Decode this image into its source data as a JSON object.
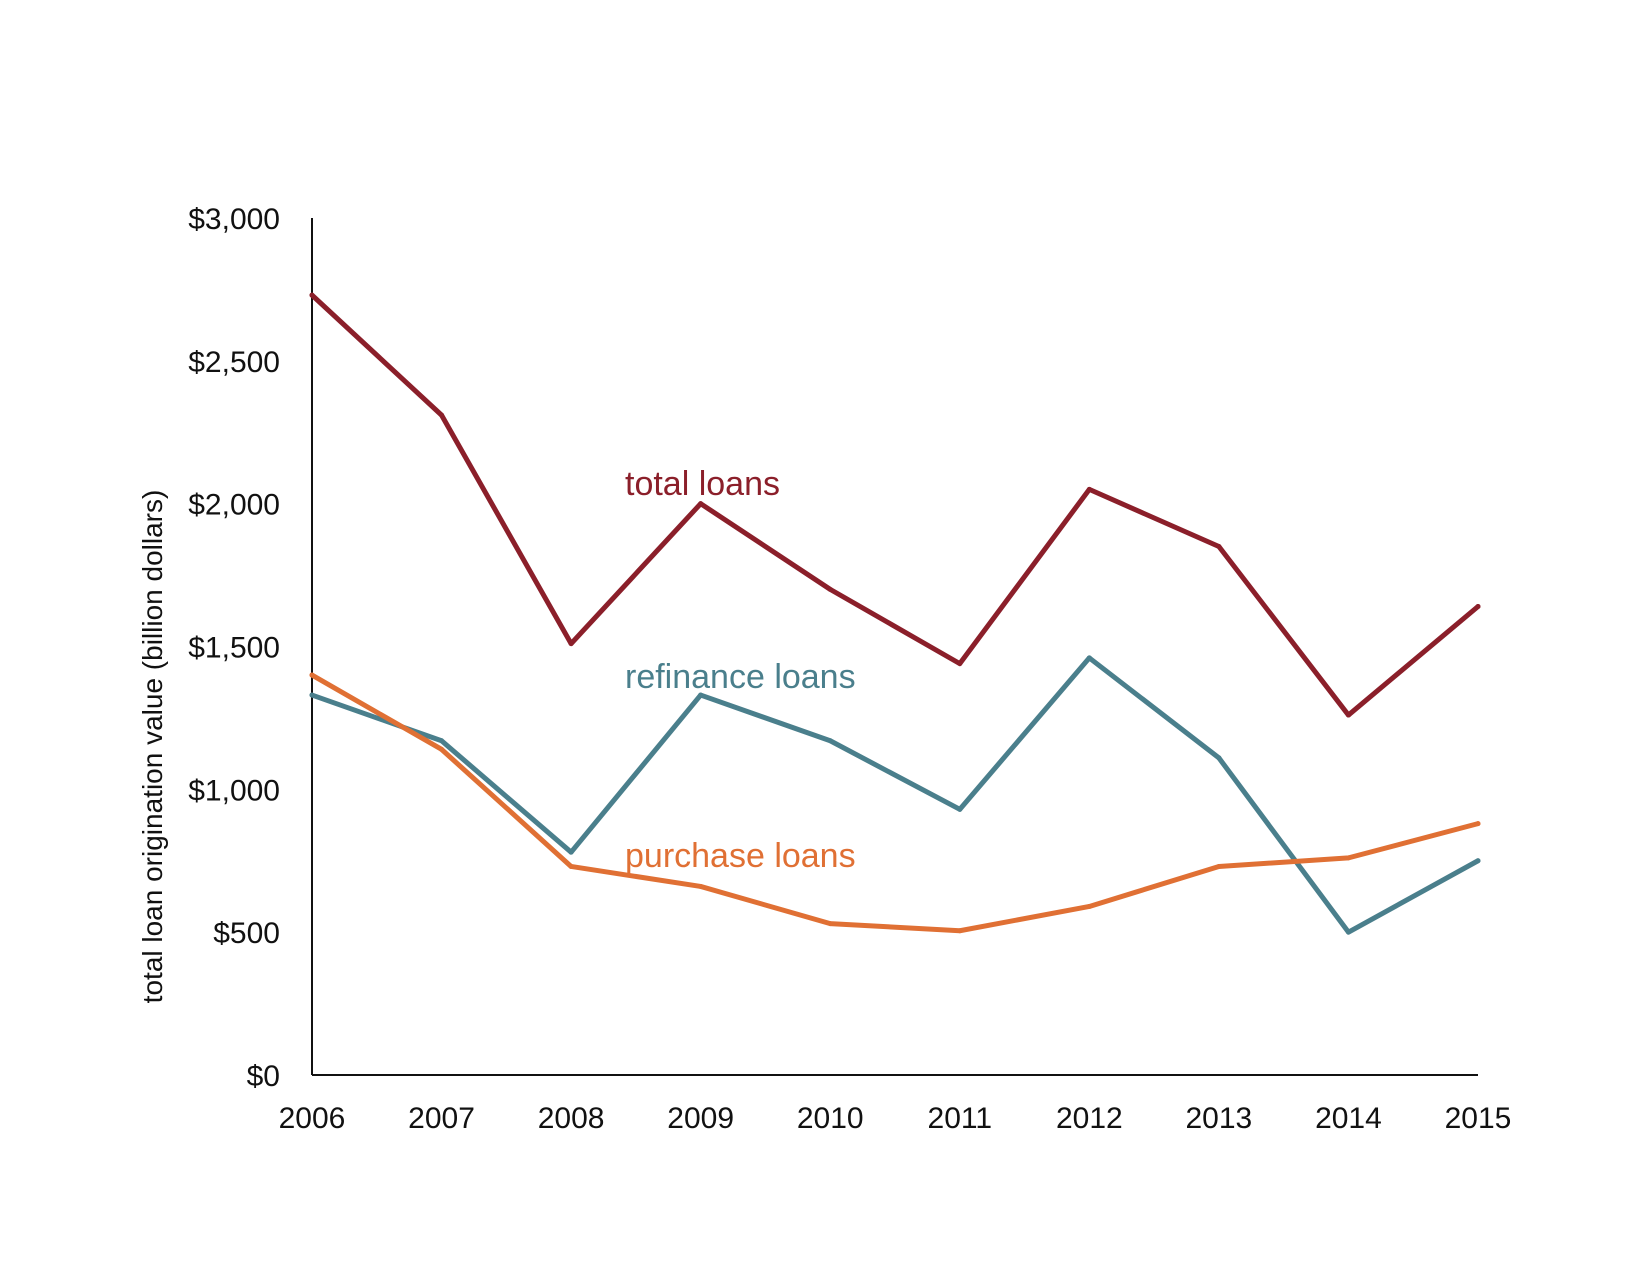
{
  "chart_data": {
    "type": "line",
    "title": "",
    "xlabel": "",
    "ylabel": "total loan origination value (billion dollars)",
    "x": [
      "2006",
      "2007",
      "2008",
      "2009",
      "2010",
      "2011",
      "2012",
      "2013",
      "2014",
      "2015"
    ],
    "ylim": [
      0,
      3000
    ],
    "yticks": [
      0,
      500,
      1000,
      1500,
      2000,
      2500,
      3000
    ],
    "ytick_labels": [
      "$0",
      "$500",
      "$1,000",
      "$1,500",
      "$2,000",
      "$2,500",
      "$3,000"
    ],
    "grid": false,
    "legend": "none (series labeled directly on chart)",
    "series": [
      {
        "name": "total loans",
        "color": "#8b1f2a",
        "values": [
          2730,
          2310,
          1510,
          2000,
          1700,
          1440,
          2050,
          1850,
          1260,
          1640
        ]
      },
      {
        "name": "refinance loans",
        "color": "#4a7f8c",
        "values": [
          1330,
          1170,
          780,
          1330,
          1170,
          930,
          1460,
          1110,
          500,
          750
        ]
      },
      {
        "name": "purchase loans",
        "color": "#e07034",
        "values": [
          1400,
          1140,
          730,
          660,
          530,
          505,
          590,
          730,
          760,
          880
        ]
      }
    ]
  }
}
